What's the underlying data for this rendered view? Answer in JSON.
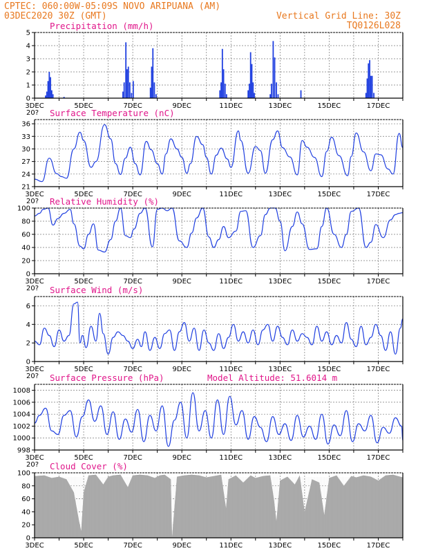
{
  "header": {
    "line1": "CPTEC:   060:00W-05:09S  NOVO ARIPUANA (AM)",
    "line2_left": "03DEC2020 30Z (GMT)",
    "line2_right": "Vertical Grid Line: 30Z",
    "line3_right": "TQ0126L028"
  },
  "colors": {
    "series": "#1f3fe0",
    "header": "#e8781e",
    "title": "#e0168a",
    "cloud": "#a9a9a9"
  },
  "x_axis": {
    "labels": [
      "3DEC",
      "5DEC",
      "7DEC",
      "9DEC",
      "11DEC",
      "13DEC",
      "15DEC",
      "17DEC"
    ],
    "partial_label": "20?"
  },
  "chart_data": [
    {
      "type": "bar",
      "title": "Precipitation (mm/h)",
      "ylim": [
        0,
        5
      ],
      "yticks": [
        "0",
        "1",
        "2",
        "3",
        "4",
        "5"
      ],
      "x_unit": "day",
      "bars": [
        [
          3.45,
          0.2
        ],
        [
          3.5,
          0.5
        ],
        [
          3.55,
          1.3
        ],
        [
          3.6,
          2.0
        ],
        [
          3.65,
          1.6
        ],
        [
          3.7,
          0.6
        ],
        [
          3.75,
          0.3
        ],
        [
          4.2,
          0.1
        ],
        [
          6.6,
          0.5
        ],
        [
          6.65,
          1.2
        ],
        [
          6.72,
          4.25
        ],
        [
          6.77,
          2.2
        ],
        [
          6.82,
          2.4
        ],
        [
          6.88,
          1.2
        ],
        [
          6.95,
          0.4
        ],
        [
          7.02,
          1.3
        ],
        [
          7.72,
          0.8
        ],
        [
          7.77,
          2.4
        ],
        [
          7.82,
          3.8
        ],
        [
          7.88,
          1.2
        ],
        [
          7.95,
          0.3
        ],
        [
          10.55,
          0.6
        ],
        [
          10.6,
          1.2
        ],
        [
          10.65,
          3.75
        ],
        [
          10.7,
          2.2
        ],
        [
          10.76,
          1.1
        ],
        [
          10.82,
          0.3
        ],
        [
          11.7,
          0.6
        ],
        [
          11.75,
          1.1
        ],
        [
          11.8,
          3.5
        ],
        [
          11.85,
          2.6
        ],
        [
          11.9,
          1.2
        ],
        [
          11.95,
          0.4
        ],
        [
          12.6,
          0.3
        ],
        [
          12.65,
          1.1
        ],
        [
          12.72,
          4.35
        ],
        [
          12.78,
          3.1
        ],
        [
          12.85,
          1.2
        ],
        [
          12.92,
          0.3
        ],
        [
          13.85,
          0.6
        ],
        [
          16.5,
          0.4
        ],
        [
          16.55,
          1.5
        ],
        [
          16.6,
          2.65
        ],
        [
          16.65,
          2.9
        ],
        [
          16.7,
          1.7
        ],
        [
          16.75,
          1.7
        ],
        [
          16.82,
          0.4
        ]
      ]
    },
    {
      "type": "line",
      "title": "Surface Temperature (nC)",
      "ylim": [
        21,
        37
      ],
      "yticks": [
        "21",
        "24",
        "27",
        "30",
        "33",
        "36"
      ],
      "x": [
        3.0,
        3.3,
        3.6,
        3.9,
        4.1,
        4.3,
        4.6,
        4.85,
        5.0,
        5.3,
        5.5,
        5.85,
        6.1,
        6.3,
        6.5,
        6.7,
        6.9,
        7.1,
        7.3,
        7.55,
        7.75,
        8.0,
        8.2,
        8.35,
        8.55,
        8.8,
        9.0,
        9.2,
        9.35,
        9.6,
        9.85,
        10.0,
        10.2,
        10.4,
        10.6,
        10.85,
        11.0,
        11.3,
        11.4,
        11.7,
        12.0,
        12.2,
        12.4,
        12.7,
        12.9,
        13.1,
        13.4,
        13.7,
        13.9,
        14.1,
        14.4,
        14.7,
        14.9,
        15.1,
        15.4,
        15.75,
        15.9,
        16.1,
        16.4,
        16.7,
        16.9,
        17.1,
        17.4,
        17.6,
        17.85,
        18.0
      ],
      "y": [
        22.8,
        22.2,
        27.8,
        24.1,
        23.4,
        23.0,
        30.0,
        34.0,
        32.0,
        25.6,
        27.0,
        35.8,
        32.4,
        26.5,
        23.9,
        27.8,
        30.4,
        26.5,
        23.8,
        31.8,
        29.8,
        26.5,
        24.0,
        28.8,
        32.4,
        30.0,
        28.0,
        24.2,
        26.5,
        33.0,
        31.0,
        28.0,
        24.0,
        28.5,
        30.2,
        27.6,
        25.6,
        34.3,
        32.0,
        24.2,
        30.6,
        29.6,
        24.2,
        32.2,
        34.3,
        30.3,
        28.1,
        23.8,
        32.0,
        30.4,
        28.0,
        23.4,
        29.4,
        32.8,
        28.4,
        23.6,
        28.2,
        33.8,
        29.3,
        24.8,
        28.8,
        28.6,
        25.2,
        24.0,
        33.7,
        30.3
      ]
    },
    {
      "type": "line",
      "title": "Relative Humidity (%)",
      "ylim": [
        0,
        100
      ],
      "yticks": [
        "0",
        "20",
        "40",
        "60",
        "80",
        "100"
      ],
      "x": [
        3.0,
        3.2,
        3.35,
        3.55,
        3.75,
        3.95,
        4.2,
        4.45,
        4.6,
        4.85,
        5.0,
        5.2,
        5.4,
        5.6,
        5.85,
        6.1,
        6.3,
        6.5,
        6.7,
        6.9,
        7.05,
        7.3,
        7.5,
        7.8,
        8.0,
        8.2,
        8.4,
        8.6,
        8.9,
        9.2,
        9.4,
        9.6,
        9.85,
        10.1,
        10.3,
        10.5,
        10.7,
        10.9,
        11.2,
        11.4,
        11.6,
        11.9,
        12.2,
        12.4,
        12.6,
        12.8,
        13.0,
        13.2,
        13.5,
        13.7,
        13.9,
        14.2,
        14.5,
        14.7,
        14.9,
        15.2,
        15.5,
        15.7,
        15.9,
        16.2,
        16.5,
        16.7,
        16.9,
        17.2,
        17.5,
        17.7,
        17.85,
        18.0
      ],
      "y": [
        88,
        92,
        98,
        100,
        74,
        84,
        92,
        98,
        76,
        42,
        38,
        60,
        76,
        36,
        33,
        52,
        80,
        100,
        58,
        55,
        68,
        92,
        100,
        41,
        98,
        100,
        96,
        100,
        50,
        40,
        62,
        85,
        100,
        56,
        40,
        52,
        72,
        55,
        65,
        95,
        96,
        40,
        58,
        90,
        100,
        100,
        80,
        35,
        72,
        94,
        76,
        37,
        38,
        72,
        100,
        60,
        40,
        60,
        95,
        100,
        40,
        48,
        75,
        55,
        82,
        90,
        92,
        93
      ]
    },
    {
      "type": "line",
      "title": "Surface Wind (m/s)",
      "ylim": [
        0,
        7
      ],
      "yticks": [
        "0",
        "2",
        "4",
        "6"
      ],
      "x": [
        3.0,
        3.2,
        3.4,
        3.6,
        3.8,
        4.0,
        4.2,
        4.4,
        4.6,
        4.75,
        4.85,
        4.95,
        5.1,
        5.3,
        5.5,
        5.65,
        5.8,
        6.0,
        6.2,
        6.4,
        6.6,
        6.8,
        7.0,
        7.2,
        7.35,
        7.5,
        7.7,
        7.9,
        8.1,
        8.3,
        8.5,
        8.7,
        8.9,
        9.1,
        9.3,
        9.5,
        9.7,
        9.9,
        10.1,
        10.3,
        10.5,
        10.7,
        10.9,
        11.1,
        11.3,
        11.5,
        11.7,
        11.9,
        12.1,
        12.3,
        12.5,
        12.7,
        12.9,
        13.1,
        13.3,
        13.5,
        13.7,
        13.9,
        14.1,
        14.3,
        14.5,
        14.7,
        14.9,
        15.1,
        15.3,
        15.5,
        15.7,
        15.9,
        16.1,
        16.3,
        16.5,
        16.7,
        16.9,
        17.1,
        17.3,
        17.5,
        17.7,
        17.9,
        18.0
      ],
      "y": [
        2.2,
        1.8,
        3.6,
        2.8,
        1.6,
        3.4,
        2.2,
        2.8,
        6.2,
        6.4,
        2.0,
        2.8,
        1.5,
        3.8,
        2.2,
        5.2,
        3.0,
        0.8,
        2.6,
        3.2,
        2.8,
        2.2,
        1.4,
        2.4,
        1.6,
        3.2,
        1.2,
        2.6,
        1.4,
        3.0,
        3.4,
        1.2,
        3.2,
        4.2,
        2.2,
        3.6,
        1.2,
        3.4,
        2.0,
        1.2,
        3.0,
        1.4,
        2.6,
        4.0,
        2.2,
        3.2,
        2.0,
        3.4,
        1.8,
        3.4,
        4.0,
        2.2,
        3.8,
        2.6,
        1.8,
        3.4,
        2.2,
        3.0,
        2.6,
        1.8,
        3.8,
        2.2,
        3.2,
        1.8,
        2.8,
        2.0,
        4.2,
        2.4,
        1.6,
        3.8,
        1.8,
        2.6,
        4.0,
        2.8,
        1.2,
        3.2,
        0.8,
        3.6,
        4.6
      ]
    },
    {
      "type": "line",
      "title": "Surface Pressure (hPa)",
      "annotation": "Model Altitude: 51.6014 m",
      "ylim": [
        998,
        1009
      ],
      "yticks": [
        "998",
        "1000",
        "1002",
        "1004",
        "1006",
        "1008"
      ],
      "x": [
        3.0,
        3.2,
        3.45,
        3.7,
        3.95,
        4.2,
        4.45,
        4.7,
        4.95,
        5.2,
        5.45,
        5.7,
        5.95,
        6.2,
        6.45,
        6.7,
        6.95,
        7.2,
        7.45,
        7.7,
        7.95,
        8.2,
        8.45,
        8.7,
        8.95,
        9.2,
        9.45,
        9.7,
        9.95,
        10.2,
        10.45,
        10.7,
        10.95,
        11.2,
        11.45,
        11.7,
        11.95,
        12.2,
        12.45,
        12.7,
        12.95,
        13.2,
        13.45,
        13.7,
        13.95,
        14.2,
        14.45,
        14.7,
        14.95,
        15.2,
        15.45,
        15.7,
        15.95,
        16.2,
        16.45,
        16.7,
        16.95,
        17.2,
        17.45,
        17.7,
        17.95,
        18.0
      ],
      "y": [
        1002.5,
        1003.8,
        1005.0,
        1001.2,
        1000.6,
        1003.8,
        1004.6,
        1000.2,
        1003.6,
        1006.4,
        1002.8,
        1005.4,
        1000.6,
        1004.4,
        999.8,
        1003.2,
        1001.0,
        1004.8,
        999.4,
        1003.8,
        1001.2,
        1005.4,
        998.6,
        1003.0,
        1006.0,
        1000.0,
        1007.6,
        1001.2,
        1004.6,
        1000.0,
        1006.4,
        1000.6,
        1007.0,
        1002.2,
        1004.6,
        999.8,
        1003.6,
        1001.8,
        999.4,
        1003.6,
        1000.6,
        1002.4,
        999.6,
        1003.8,
        1000.2,
        1002.0,
        999.8,
        1004.0,
        999.0,
        1002.2,
        1000.4,
        1004.6,
        999.4,
        1002.4,
        1001.2,
        1003.8,
        999.2,
        1001.8,
        1000.8,
        1003.4,
        1002.0,
        999.6
      ]
    },
    {
      "type": "area",
      "title": "Cloud Cover (%)",
      "ylim": [
        0,
        100
      ],
      "yticks": [
        "0",
        "20",
        "40",
        "60",
        "80",
        "100"
      ],
      "x": [
        3.0,
        3.4,
        3.7,
        4.0,
        4.3,
        4.6,
        4.8,
        4.9,
        5.0,
        5.2,
        5.5,
        5.8,
        6.0,
        6.2,
        6.5,
        6.8,
        7.0,
        7.3,
        7.6,
        7.9,
        8.1,
        8.3,
        8.55,
        8.6,
        8.8,
        9.1,
        9.4,
        9.7,
        10.0,
        10.3,
        10.6,
        10.8,
        10.9,
        11.2,
        11.5,
        11.8,
        12.0,
        12.3,
        12.6,
        12.75,
        12.85,
        13.0,
        13.3,
        13.6,
        13.8,
        14.0,
        14.3,
        14.6,
        14.8,
        15.0,
        15.3,
        15.6,
        15.9,
        16.1,
        16.4,
        16.7,
        17.0,
        17.3,
        17.6,
        17.8,
        18.0
      ],
      "y": [
        95,
        96,
        92,
        94,
        90,
        70,
        28,
        10,
        70,
        96,
        97,
        82,
        94,
        96,
        97,
        78,
        96,
        97,
        96,
        92,
        96,
        97,
        90,
        0,
        94,
        96,
        97,
        96,
        93,
        95,
        97,
        45,
        90,
        96,
        85,
        96,
        92,
        95,
        96,
        60,
        25,
        88,
        94,
        82,
        96,
        40,
        90,
        85,
        35,
        92,
        96,
        80,
        95,
        93,
        96,
        94,
        88,
        96,
        97,
        95,
        93
      ]
    }
  ]
}
